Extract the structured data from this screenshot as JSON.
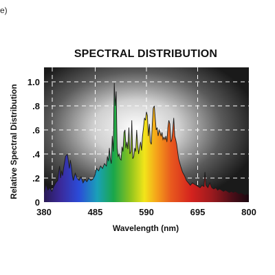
{
  "figure_label": "e)",
  "chart_data": {
    "type": "area",
    "title": "SPECTRAL DISTRIBUTION",
    "xlabel": "Wavelength (nm)",
    "ylabel": "Relative Spectral Distribution",
    "xlim": [
      380,
      800
    ],
    "ylim": [
      0,
      1.0
    ],
    "x_ticks": [
      380,
      485,
      590,
      695,
      800
    ],
    "x_tick_labels": [
      "380",
      "485",
      "590",
      "695",
      "800"
    ],
    "y_ticks": [
      0,
      0.2,
      0.4,
      0.6,
      0.8,
      1.0
    ],
    "y_tick_labels": [
      "0",
      ".2",
      ".4",
      ".6",
      ".8",
      "1.0"
    ],
    "grid": true,
    "series": [
      {
        "x": [
          380,
          384,
          388,
          392,
          396,
          400,
          404,
          408,
          410,
          412,
          414,
          416,
          418,
          420,
          424,
          428,
          432,
          434,
          436,
          438,
          440,
          444,
          448,
          452,
          456,
          460,
          464,
          468,
          472,
          476,
          480,
          484,
          488,
          492,
          496,
          500,
          504,
          508,
          510,
          512,
          514,
          516,
          518,
          520,
          522,
          524,
          526,
          528,
          530,
          532,
          534,
          536,
          538,
          540,
          542,
          544,
          546,
          548,
          550,
          552,
          554,
          556,
          558,
          560,
          562,
          564,
          566,
          568,
          570,
          572,
          574,
          576,
          578,
          580,
          582,
          584,
          586,
          588,
          590,
          592,
          594,
          596,
          598,
          600,
          602,
          604,
          606,
          608,
          610,
          612,
          614,
          616,
          618,
          620,
          622,
          624,
          626,
          628,
          630,
          632,
          634,
          636,
          638,
          640,
          642,
          644,
          646,
          648,
          650,
          652,
          654,
          656,
          660,
          664,
          668,
          672,
          676,
          680,
          684,
          688,
          692,
          696,
          700,
          704,
          708,
          710,
          712,
          716,
          720,
          724,
          728,
          732,
          736,
          740,
          744,
          748,
          752,
          756,
          760,
          764,
          768,
          772,
          776,
          780,
          784,
          788,
          792,
          796,
          800
        ],
        "y": [
          0.08,
          0.15,
          0.1,
          0.12,
          0.09,
          0.13,
          0.16,
          0.18,
          0.25,
          0.3,
          0.2,
          0.26,
          0.22,
          0.28,
          0.38,
          0.4,
          0.28,
          0.35,
          0.3,
          0.22,
          0.18,
          0.24,
          0.2,
          0.18,
          0.21,
          0.16,
          0.19,
          0.17,
          0.2,
          0.18,
          0.19,
          0.22,
          0.28,
          0.26,
          0.3,
          0.28,
          0.32,
          0.3,
          0.38,
          0.34,
          0.45,
          0.36,
          0.32,
          0.55,
          0.42,
          0.99,
          0.8,
          0.92,
          0.45,
          0.38,
          0.4,
          0.36,
          0.35,
          0.46,
          0.42,
          0.58,
          0.6,
          0.45,
          0.5,
          0.44,
          0.62,
          0.4,
          0.42,
          0.68,
          0.36,
          0.38,
          0.45,
          0.42,
          0.6,
          0.48,
          0.4,
          0.46,
          0.5,
          0.43,
          0.55,
          0.62,
          0.7,
          0.68,
          0.75,
          0.72,
          0.55,
          0.65,
          0.5,
          0.48,
          0.65,
          0.78,
          0.8,
          0.7,
          0.6,
          0.62,
          0.55,
          0.6,
          0.58,
          0.55,
          0.58,
          0.52,
          0.54,
          0.52,
          0.55,
          0.5,
          0.62,
          0.68,
          0.65,
          0.5,
          0.52,
          0.6,
          0.7,
          0.55,
          0.52,
          0.48,
          0.42,
          0.36,
          0.3,
          0.25,
          0.22,
          0.18,
          0.16,
          0.14,
          0.16,
          0.15,
          0.14,
          0.13,
          0.12,
          0.14,
          0.13,
          0.25,
          0.14,
          0.12,
          0.16,
          0.12,
          0.11,
          0.12,
          0.1,
          0.11,
          0.1,
          0.09,
          0.1,
          0.09,
          0.08,
          0.09,
          0.08,
          0.09,
          0.08,
          0.07,
          0.08,
          0.07,
          0.06,
          0.07,
          0.06
        ]
      }
    ]
  }
}
